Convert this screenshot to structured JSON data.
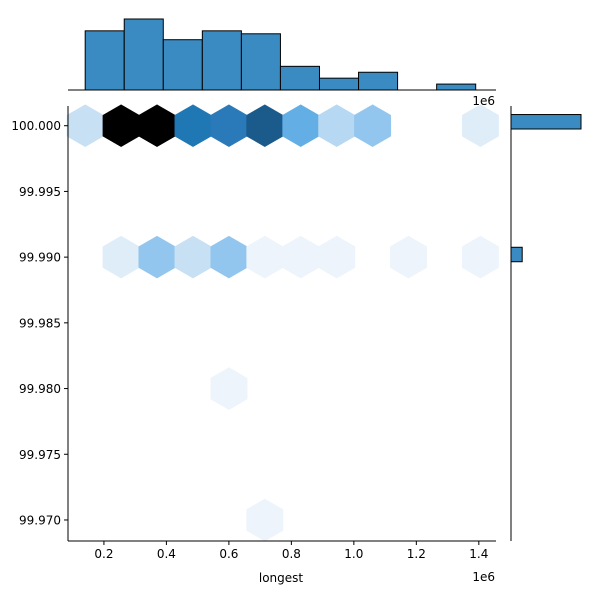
{
  "chart_data": {
    "type": "hexbin",
    "title": "",
    "xlabel": "longest",
    "ylabel": "",
    "x_offset_label": "1e6",
    "top_margin_offset_label": "1e6",
    "xlim": [
      0.085,
      1.455
    ],
    "ylim": [
      99.9684,
      100.0015
    ],
    "x_ticks": [
      0.2,
      0.4,
      0.6,
      0.8,
      1.0,
      1.2,
      1.4
    ],
    "x_tick_labels": [
      "0.2",
      "0.4",
      "0.6",
      "0.8",
      "1.0",
      "1.2",
      "1.4"
    ],
    "y_ticks": [
      100.0,
      99.995,
      99.99,
      99.985,
      99.98,
      99.975,
      99.97
    ],
    "y_tick_labels": [
      "100.000",
      "99.995",
      "99.990",
      "99.985",
      "99.980",
      "99.975",
      "99.970"
    ],
    "grid": false,
    "legend": "none",
    "colors": {
      "darkest": "#000000",
      "dark": "#1b5b8c",
      "mid_dark": "#1f77b4",
      "mid_dark2": "#2a7ab9",
      "mid": "#62aee5",
      "mid_light": "#92c6ee",
      "light": "#b7d8f2",
      "lighter": "#c8e0f4",
      "pale": "#dfedf9",
      "palest": "#edf4fb",
      "bar_fill": "#3a8bc2",
      "bar_edge": "#000000"
    },
    "hexbins": [
      {
        "x": 0.14,
        "y": 100.0,
        "color": "#c8e0f4"
      },
      {
        "x": 0.255,
        "y": 100.0,
        "color": "#000000"
      },
      {
        "x": 0.37,
        "y": 100.0,
        "color": "#000000"
      },
      {
        "x": 0.485,
        "y": 100.0,
        "color": "#1f77b4"
      },
      {
        "x": 0.6,
        "y": 100.0,
        "color": "#2a7ab9"
      },
      {
        "x": 0.715,
        "y": 100.0,
        "color": "#1b5b8c"
      },
      {
        "x": 0.83,
        "y": 100.0,
        "color": "#62aee5"
      },
      {
        "x": 0.945,
        "y": 100.0,
        "color": "#b7d8f2"
      },
      {
        "x": 1.06,
        "y": 100.0,
        "color": "#92c6ee"
      },
      {
        "x": 1.405,
        "y": 100.0,
        "color": "#dfedf9"
      },
      {
        "x": 0.255,
        "y": 99.99,
        "color": "#dfedf9"
      },
      {
        "x": 0.37,
        "y": 99.99,
        "color": "#92c6ee"
      },
      {
        "x": 0.485,
        "y": 99.99,
        "color": "#c8e0f4"
      },
      {
        "x": 0.6,
        "y": 99.99,
        "color": "#92c6ee"
      },
      {
        "x": 0.715,
        "y": 99.99,
        "color": "#edf4fb"
      },
      {
        "x": 0.83,
        "y": 99.99,
        "color": "#edf4fb"
      },
      {
        "x": 0.945,
        "y": 99.99,
        "color": "#edf4fb"
      },
      {
        "x": 1.175,
        "y": 99.99,
        "color": "#edf4fb"
      },
      {
        "x": 1.405,
        "y": 99.99,
        "color": "#edf4fb"
      },
      {
        "x": 0.6,
        "y": 99.98,
        "color": "#edf4fb"
      },
      {
        "x": 0.715,
        "y": 99.97,
        "color": "#edf4fb"
      }
    ],
    "x_hist": {
      "bin_edges": [
        0.14,
        0.265,
        0.39,
        0.515,
        0.64,
        0.765,
        0.89,
        1.015,
        1.14,
        1.265,
        1.39
      ],
      "counts": [
        20,
        24,
        17,
        20,
        19,
        8,
        4,
        6,
        0,
        2
      ]
    },
    "y_hist": {
      "bins": [
        {
          "y0": 99.99975,
          "y1": 100.00085,
          "count": 100
        },
        {
          "y0": 99.98965,
          "y1": 99.99075,
          "count": 16
        }
      ]
    }
  }
}
